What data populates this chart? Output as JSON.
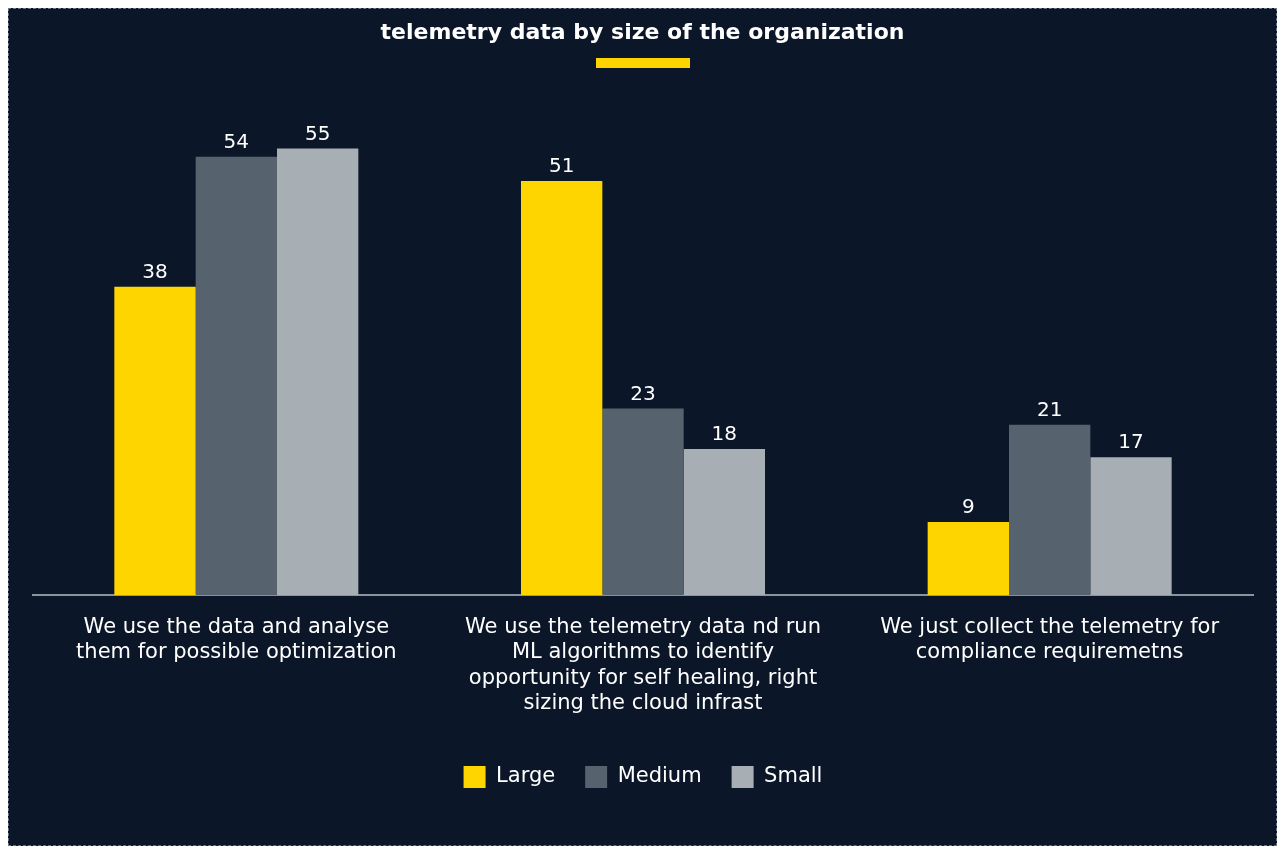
{
  "chart_data": {
    "type": "bar",
    "title": "telemetry data by size of the organization",
    "categories": [
      "We use the data and analyse them for possible optimization",
      "We use the telemetry data nd run ML algorithms to identify opportunity for self healing, right sizing the cloud infrast",
      "We just collect the telemetry for compliance requiremetns"
    ],
    "series": [
      {
        "name": "Large",
        "color": "#ffd500",
        "values": [
          38,
          51,
          9
        ]
      },
      {
        "name": "Medium",
        "color": "#56626d",
        "values": [
          54,
          23,
          21
        ]
      },
      {
        "name": "Small",
        "color": "#a7aeb4",
        "values": [
          55,
          18,
          17
        ]
      }
    ],
    "data_labels": true,
    "legend": "bottom",
    "grid": false
  }
}
